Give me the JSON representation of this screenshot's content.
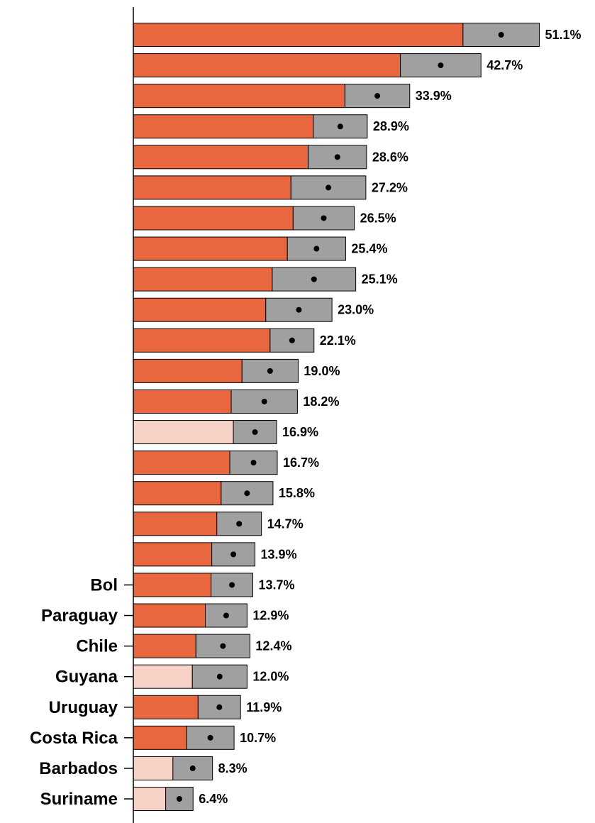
{
  "chart_data": {
    "type": "bar",
    "orientation": "horizontal",
    "categories": [
      "",
      "",
      "",
      "",
      "",
      "",
      "",
      "",
      "",
      "",
      "",
      "",
      "",
      "",
      "",
      "",
      "",
      "",
      "Bol",
      "Paraguay",
      "Chile",
      "Guyana",
      "Uruguay",
      "Costa Rica",
      "Barbados",
      "Suriname"
    ],
    "values": [
      51.1,
      42.7,
      33.9,
      28.9,
      28.6,
      27.2,
      26.5,
      25.4,
      25.1,
      23.0,
      22.1,
      19.0,
      18.2,
      16.9,
      16.7,
      15.8,
      14.7,
      13.9,
      13.7,
      12.9,
      12.4,
      12.0,
      11.9,
      10.7,
      8.3,
      6.4
    ],
    "value_labels": [
      "51.1%",
      "42.7%",
      "33.9%",
      "28.9%",
      "28.6%",
      "27.2%",
      "26.5%",
      "25.4%",
      "25.1%",
      "23.0%",
      "22.1%",
      "19.0%",
      "18.2%",
      "16.9%",
      "16.7%",
      "15.8%",
      "14.7%",
      "13.9%",
      "13.7%",
      "12.9%",
      "12.4%",
      "12.0%",
      "11.9%",
      "10.7%",
      "8.3%",
      "6.4%"
    ],
    "bar_base_values": [
      45.8,
      37.1,
      29.4,
      25.0,
      24.3,
      21.9,
      22.2,
      21.4,
      19.3,
      18.4,
      19.0,
      15.1,
      13.6,
      13.9,
      13.4,
      12.2,
      11.6,
      10.9,
      10.8,
      10.0,
      8.7,
      8.2,
      9.0,
      7.4,
      5.5,
      4.5
    ],
    "interval_low": [
      45.8,
      37.1,
      29.4,
      25.0,
      24.3,
      21.9,
      22.2,
      21.4,
      19.3,
      18.4,
      19.0,
      15.1,
      13.6,
      13.9,
      13.4,
      12.2,
      11.6,
      10.9,
      10.8,
      10.0,
      8.7,
      8.2,
      9.0,
      7.4,
      5.5,
      4.5
    ],
    "interval_high": [
      56.4,
      48.3,
      38.4,
      32.5,
      32.4,
      32.3,
      30.7,
      29.5,
      30.9,
      27.6,
      25.1,
      22.9,
      22.8,
      19.9,
      20.0,
      19.4,
      17.8,
      16.9,
      16.6,
      15.8,
      16.2,
      15.8,
      14.9,
      14.0,
      11.0,
      8.3
    ],
    "bar_styles": [
      "solid",
      "solid",
      "solid",
      "solid",
      "solid",
      "solid",
      "solid",
      "solid",
      "solid",
      "solid",
      "solid",
      "solid",
      "solid",
      "light",
      "solid",
      "solid",
      "solid",
      "solid",
      "solid",
      "solid",
      "solid",
      "light",
      "solid",
      "solid",
      "light",
      "light"
    ],
    "colors": {
      "bar": "#e8673f",
      "bar_light": "#f7d3c7",
      "interval": "#a0a0a0",
      "point": "#000000",
      "axis": "#000000"
    },
    "xlim": [
      0,
      56.4
    ],
    "title": "",
    "xlabel": "",
    "ylabel": "",
    "grid": false,
    "legend": "none"
  }
}
